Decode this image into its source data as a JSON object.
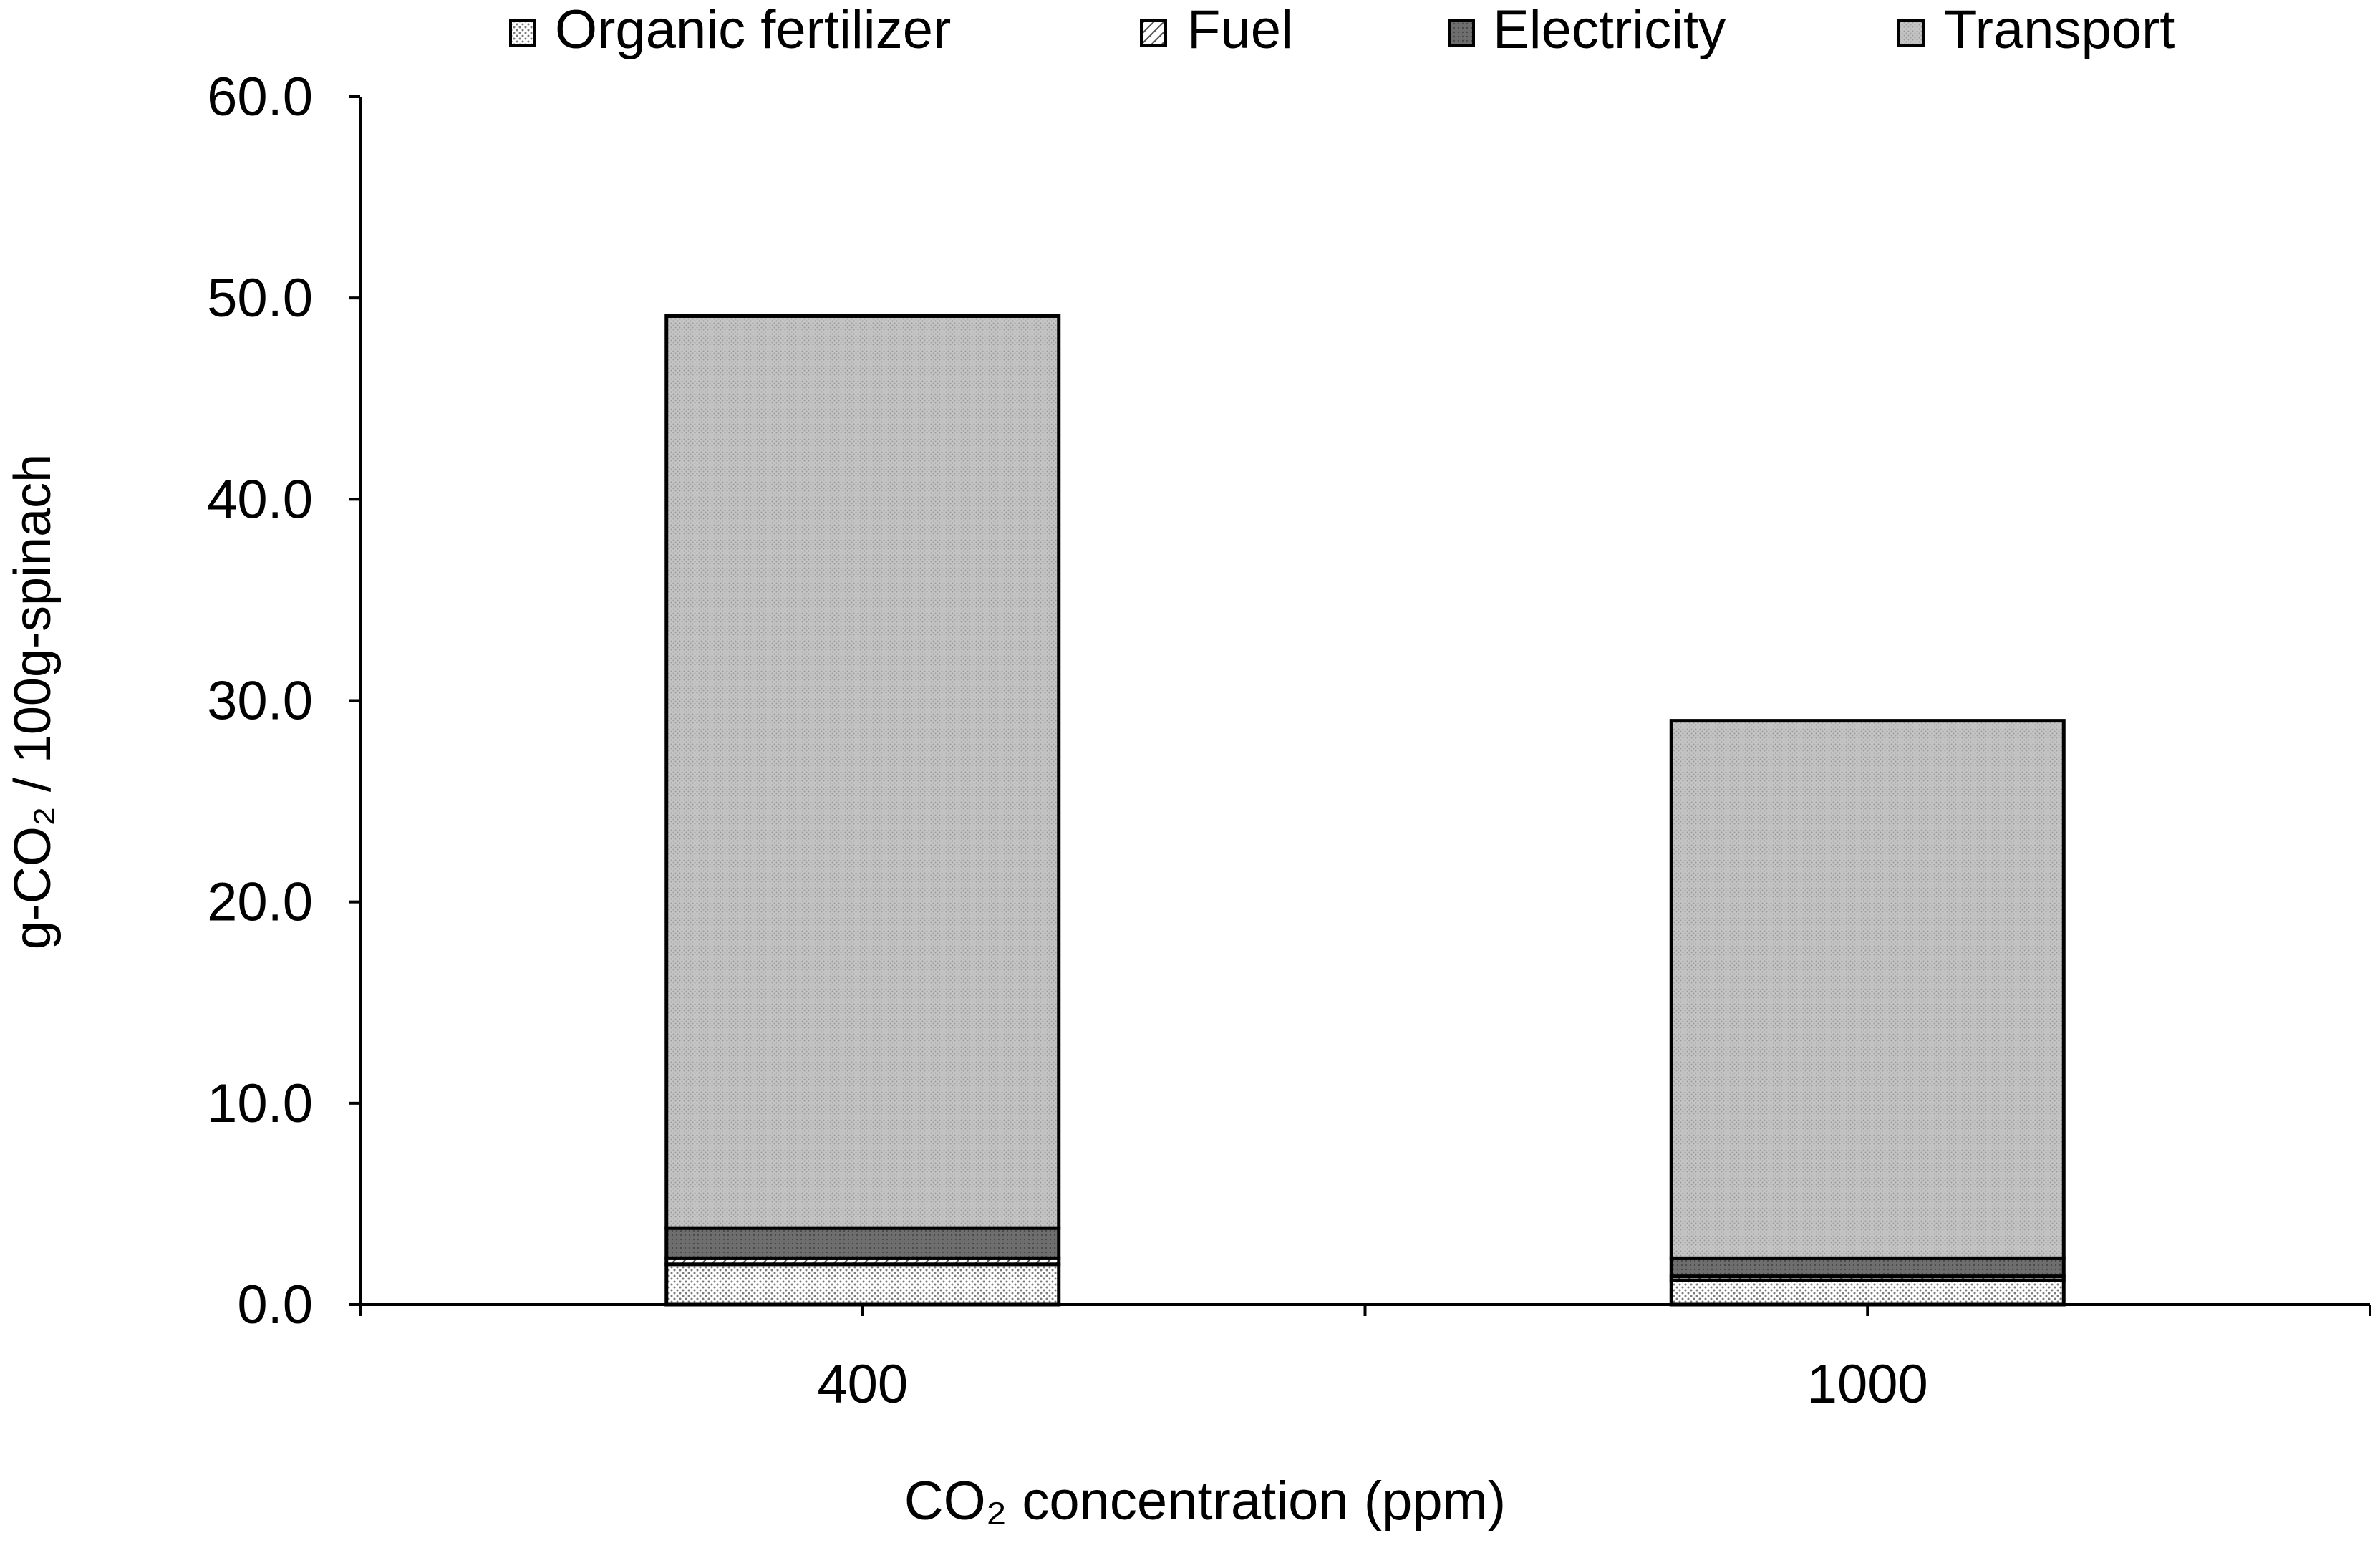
{
  "chart_data": {
    "type": "bar",
    "stacked": true,
    "title": "",
    "xlabel": "CO₂ concentration (ppm)",
    "ylabel": "g-CO₂ / 100g-spinach",
    "categories": [
      "400",
      "1000"
    ],
    "ylim": [
      0,
      60
    ],
    "yticks": [
      "0.0",
      "10.0",
      "20.0",
      "30.0",
      "40.0",
      "50.0",
      "60.0"
    ],
    "grid": false,
    "legend_position": "top",
    "series": [
      {
        "name": "Organic fertilizer",
        "values": [
          2.0,
          1.2
        ],
        "pattern": "dots"
      },
      {
        "name": "Fuel",
        "values": [
          0.3,
          0.2
        ],
        "pattern": "diagonal"
      },
      {
        "name": "Electricity",
        "values": [
          1.5,
          0.9
        ],
        "pattern": "dark"
      },
      {
        "name": "Transport",
        "values": [
          45.3,
          26.7
        ],
        "pattern": "light-dots"
      }
    ]
  },
  "colors": {
    "axis": "#000000",
    "bar_outline": "#000000",
    "organic_bg": "#ffffff",
    "organic_dot": "#7a7a7a",
    "fuel_bg": "#ffffff",
    "fuel_line": "#555555",
    "electricity_bg": "#6e6e6e",
    "electricity_dot": "#4a4a4a",
    "transport_bg": "#c4c4c4",
    "transport_dot": "#9a9a9a"
  }
}
